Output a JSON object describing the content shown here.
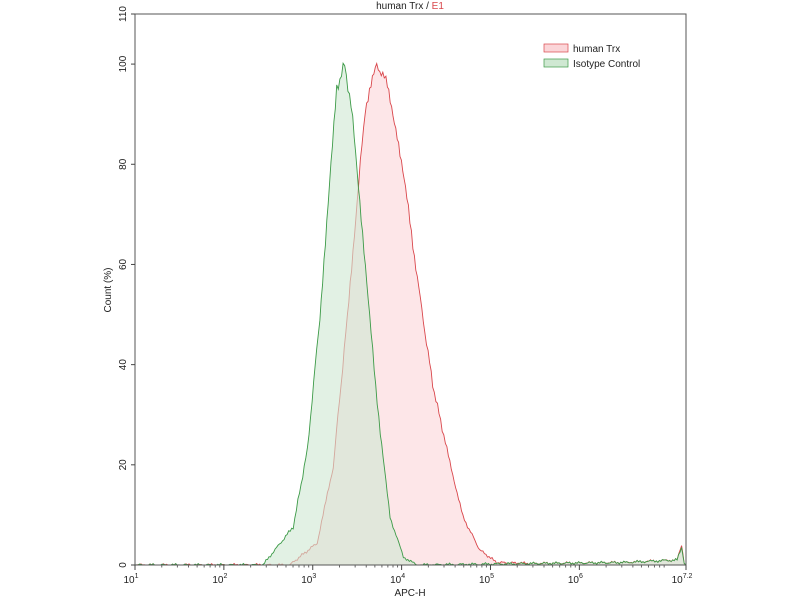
{
  "chart_data": {
    "type": "area",
    "title": "human Trx",
    "title_suffix": "E1",
    "title_separator": " / ",
    "xlabel": "APC-H",
    "ylabel": "Count (%)",
    "x_scale": "log",
    "xlim_log10": [
      1,
      7.2
    ],
    "ylim": [
      0,
      110
    ],
    "x_ticks": [
      {
        "base": "10",
        "exp": "1",
        "log": 1
      },
      {
        "base": "10",
        "exp": "2",
        "log": 2
      },
      {
        "base": "10",
        "exp": "3",
        "log": 3
      },
      {
        "base": "10",
        "exp": "4",
        "log": 4
      },
      {
        "base": "10",
        "exp": "5",
        "log": 5
      },
      {
        "base": "10",
        "exp": "6",
        "log": 6
      },
      {
        "base": "10",
        "exp": "7.2",
        "log": 7.2
      }
    ],
    "y_ticks": [
      "0",
      "20",
      "40",
      "60",
      "80",
      "100",
      "110"
    ],
    "grid": false,
    "legend_position": "top-right",
    "series": [
      {
        "name": "human Trx",
        "line_color": "#d9464b",
        "fill_color": "#fbd5d8",
        "points_log10x": [
          [
            1,
            0
          ],
          [
            2.74,
            0
          ],
          [
            3.05,
            4.4
          ],
          [
            3.23,
            19.6
          ],
          [
            3.39,
            49.5
          ],
          [
            3.5,
            73
          ],
          [
            3.59,
            91
          ],
          [
            3.72,
            100
          ],
          [
            3.84,
            96
          ],
          [
            3.95,
            86
          ],
          [
            4.06,
            73
          ],
          [
            4.21,
            53
          ],
          [
            4.35,
            36
          ],
          [
            4.51,
            23
          ],
          [
            4.69,
            9.6
          ],
          [
            4.88,
            3
          ],
          [
            5.07,
            0.5
          ],
          [
            5.5,
            0.3
          ],
          [
            6.5,
            0.5
          ],
          [
            7.1,
            1
          ],
          [
            7.15,
            4
          ],
          [
            7.18,
            0.5
          ],
          [
            7.2,
            0
          ]
        ]
      },
      {
        "name": "Isotype Control",
        "line_color": "#3c9a47",
        "fill_color": "#cfe8d2",
        "points_log10x": [
          [
            1,
            0
          ],
          [
            2.44,
            0
          ],
          [
            2.78,
            7.6
          ],
          [
            2.94,
            23
          ],
          [
            3.08,
            49.5
          ],
          [
            3.19,
            76
          ],
          [
            3.27,
            95
          ],
          [
            3.36,
            100
          ],
          [
            3.45,
            89
          ],
          [
            3.53,
            73
          ],
          [
            3.64,
            49.5
          ],
          [
            3.76,
            26
          ],
          [
            3.87,
            9.6
          ],
          [
            4.02,
            1.6
          ],
          [
            4.17,
            0
          ],
          [
            5.5,
            0.3
          ],
          [
            6.5,
            0.5
          ],
          [
            7.1,
            1
          ],
          [
            7.15,
            3.5
          ],
          [
            7.18,
            0.5
          ],
          [
            7.2,
            0
          ]
        ]
      }
    ]
  }
}
